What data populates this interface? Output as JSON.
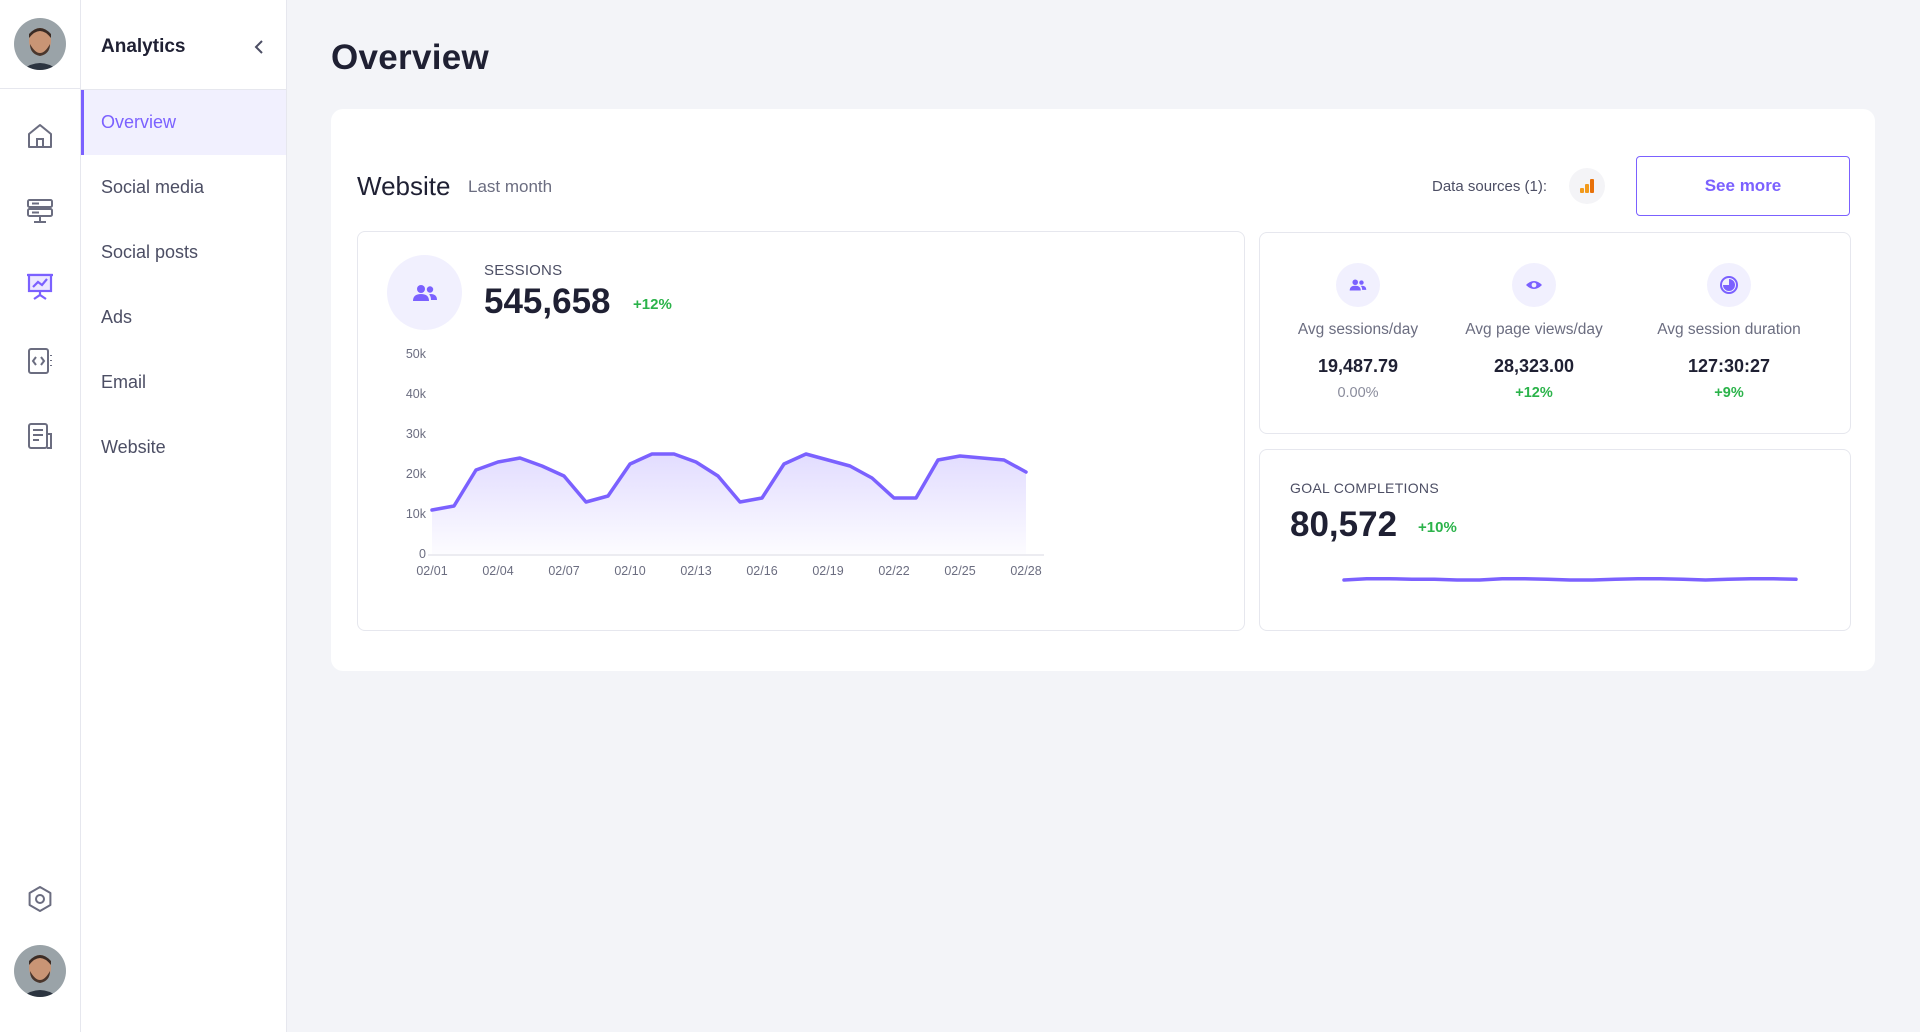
{
  "sidebar": {
    "title": "Analytics",
    "items": [
      {
        "label": "Overview",
        "active": true
      },
      {
        "label": "Social media"
      },
      {
        "label": "Social posts"
      },
      {
        "label": "Ads"
      },
      {
        "label": "Email"
      },
      {
        "label": "Website"
      }
    ],
    "rail_icons": [
      "home-icon",
      "server-icon",
      "presentation-chart-icon",
      "code-file-icon",
      "document-icon",
      "settings-hexagon-icon"
    ]
  },
  "page": {
    "title": "Overview"
  },
  "website_card": {
    "title": "Website",
    "period": "Last month",
    "data_sources_label": "Data sources (1):",
    "see_more_label": "See more"
  },
  "sessions": {
    "label": "SESSIONS",
    "value": "545,658",
    "delta": "+12%"
  },
  "averages": [
    {
      "label": "Avg sessions/day",
      "value": "19,487.79",
      "delta": "0.00%",
      "icon": "users-icon"
    },
    {
      "label": "Avg page views/day",
      "value": "28,323.00",
      "delta": "+12%",
      "icon": "eye-icon"
    },
    {
      "label": "Avg session duration",
      "value": "127:30:27",
      "delta": "+9%",
      "icon": "clock-pie-icon"
    }
  ],
  "goals": {
    "label": "GOAL COMPLETIONS",
    "value": "80,572",
    "delta": "+10%"
  },
  "colors": {
    "accent": "#7b61ff",
    "positive": "#2bb34a",
    "background": "#f3f4f8"
  },
  "chart_data": {
    "type": "area",
    "x_tick_labels": [
      "02/01",
      "02/04",
      "02/07",
      "02/10",
      "02/13",
      "02/16",
      "02/19",
      "02/22",
      "02/25",
      "02/28"
    ],
    "y_tick_labels": [
      "0",
      "10k",
      "20k",
      "30k",
      "40k",
      "50k"
    ],
    "ylim": [
      0,
      50000
    ],
    "x": [
      1,
      2,
      3,
      4,
      5,
      6,
      7,
      8,
      9,
      10,
      11,
      12,
      13,
      14,
      15,
      16,
      17,
      18,
      19,
      20,
      21,
      22,
      23,
      24,
      25,
      26,
      27,
      28
    ],
    "values": [
      11000,
      12000,
      21000,
      23000,
      24000,
      22000,
      19500,
      13000,
      14500,
      22500,
      25000,
      25000,
      23000,
      19500,
      13000,
      14000,
      22500,
      25000,
      23500,
      22000,
      19000,
      14000,
      14000,
      23500,
      24500,
      24000,
      23500,
      20500
    ],
    "goal_sparkline": [
      80,
      82,
      82,
      81,
      81,
      80,
      80,
      82,
      82,
      81,
      80,
      80,
      81,
      82,
      82,
      81,
      80,
      81,
      82,
      82,
      81
    ]
  }
}
